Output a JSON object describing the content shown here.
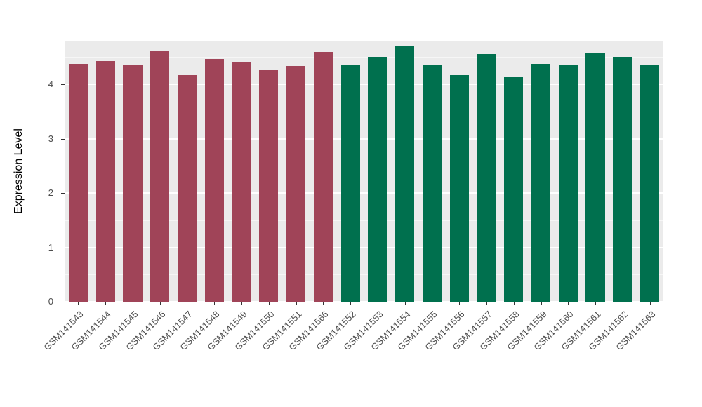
{
  "chart_data": {
    "type": "bar",
    "title": "",
    "xlabel": "",
    "ylabel": "Expression Level",
    "categories": [
      "GSM141543",
      "GSM141544",
      "GSM141545",
      "GSM141546",
      "GSM141547",
      "GSM141548",
      "GSM141549",
      "GSM141550",
      "GSM141551",
      "GSM141566",
      "GSM141552",
      "GSM141553",
      "GSM141554",
      "GSM141555",
      "GSM141556",
      "GSM141557",
      "GSM141558",
      "GSM141559",
      "GSM141560",
      "GSM141561",
      "GSM141562",
      "GSM141563"
    ],
    "values": [
      4.38,
      4.42,
      4.36,
      4.62,
      4.17,
      4.46,
      4.41,
      4.26,
      4.33,
      4.59,
      4.35,
      4.5,
      4.71,
      4.35,
      4.17,
      4.55,
      4.13,
      4.37,
      4.35,
      4.57,
      4.5,
      4.36
    ],
    "group_index": [
      0,
      0,
      0,
      0,
      0,
      0,
      0,
      0,
      0,
      0,
      1,
      1,
      1,
      1,
      1,
      1,
      1,
      1,
      1,
      1,
      1,
      1
    ],
    "group_colors": [
      "#A04458",
      "#00704E"
    ],
    "yticks": [
      0,
      1,
      2,
      3,
      4
    ],
    "ylim": [
      0,
      4.8
    ],
    "grid": true,
    "legend": "none",
    "panel_bg": "#EBEBEB",
    "grid_color": "#FFFFFF",
    "tick_label_color": "#4D4D4D",
    "axis_title_color": "#000000"
  }
}
